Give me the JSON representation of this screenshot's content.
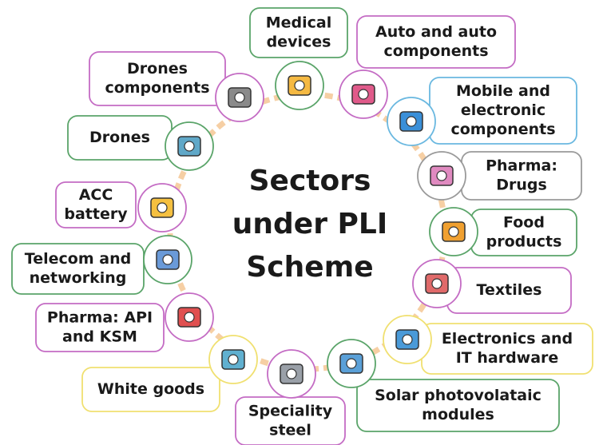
{
  "title": [
    "Sectors",
    "under PLI",
    "Scheme"
  ],
  "nodes": [
    {
      "lines": [
        "Medical",
        "devices"
      ]
    },
    {
      "lines": [
        "Auto and auto",
        "components"
      ]
    },
    {
      "lines": [
        "Mobile and",
        "electronic",
        "components"
      ]
    },
    {
      "lines": [
        "Pharma:",
        "Drugs"
      ]
    },
    {
      "lines": [
        "Food",
        "products"
      ]
    },
    {
      "lines": [
        "Textiles"
      ]
    },
    {
      "lines": [
        "Electronics and",
        "IT hardware"
      ]
    },
    {
      "lines": [
        "Solar photovolataic",
        "modules"
      ]
    },
    {
      "lines": [
        "Speciality",
        "steel"
      ]
    },
    {
      "lines": [
        "White goods"
      ]
    },
    {
      "lines": [
        "Pharma: API",
        "and KSM"
      ]
    },
    {
      "lines": [
        "Telecom and",
        "networking"
      ]
    },
    {
      "lines": [
        "ACC",
        "battery"
      ]
    },
    {
      "lines": [
        "Drones"
      ]
    },
    {
      "lines": [
        "Drones",
        "components"
      ]
    }
  ]
}
